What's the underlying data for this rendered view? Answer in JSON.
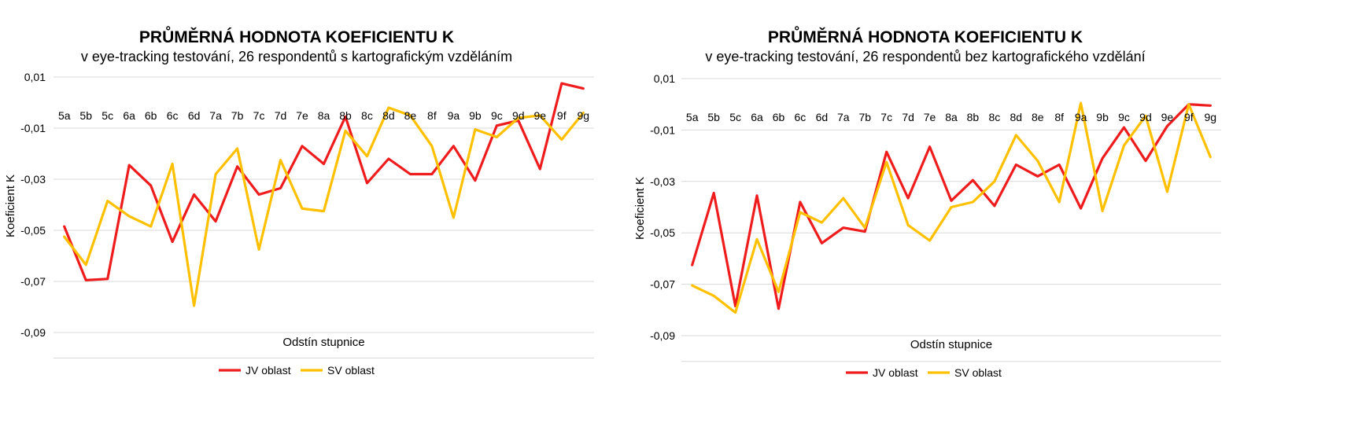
{
  "chart_data": [
    {
      "type": "line",
      "title": "PRŮMĚRNÁ HODNOTA KOEFICIENTU K",
      "subtitle": "v eye-tracking testování, 26 respondentů s kartografickým vzděláním",
      "xlabel": "Odstín stupnice",
      "ylabel": "Koeficient K",
      "ylim": [
        -0.1,
        0.01
      ],
      "yticks": [
        "0,01",
        "-0,01",
        "-0,03",
        "-0,05",
        "-0,07",
        "-0,09"
      ],
      "categories": [
        "5a",
        "5b",
        "5c",
        "6a",
        "6b",
        "6c",
        "6d",
        "7a",
        "7b",
        "7c",
        "7d",
        "7e",
        "8a",
        "8b",
        "8c",
        "8d",
        "8e",
        "8f",
        "9a",
        "9b",
        "9c",
        "9d",
        "9e",
        "9f",
        "9g"
      ],
      "series": [
        {
          "name": "JV oblast",
          "color": "#ee1c1c",
          "values": [
            -0.0485,
            -0.0695,
            -0.069,
            -0.0245,
            -0.0325,
            -0.0545,
            -0.036,
            -0.0465,
            -0.025,
            -0.036,
            -0.0335,
            -0.017,
            -0.024,
            -0.0055,
            -0.0315,
            -0.022,
            -0.028,
            -0.028,
            -0.017,
            -0.0305,
            -0.009,
            -0.007,
            -0.026,
            0.0075,
            0.0055
          ]
        },
        {
          "name": "SV oblast",
          "color": "#ffc000",
          "values": [
            -0.0525,
            -0.0635,
            -0.0385,
            -0.0445,
            -0.0485,
            -0.024,
            -0.0795,
            -0.028,
            -0.018,
            -0.0575,
            -0.0225,
            -0.0415,
            -0.0425,
            -0.011,
            -0.021,
            -0.002,
            -0.005,
            -0.017,
            -0.045,
            -0.0105,
            -0.0135,
            -0.006,
            -0.005,
            -0.0145,
            -0.004
          ]
        }
      ]
    },
    {
      "type": "line",
      "title": "PRŮMĚRNÁ HODNOTA KOEFICIENTU K",
      "subtitle": "v eye-tracking testování, 26 respondentů bez kartografického vzdělání",
      "xlabel": "Odstín stupnice",
      "ylabel": "Koeficient K",
      "ylim": [
        -0.1,
        0.01
      ],
      "yticks": [
        "0,01",
        "-0,01",
        "-0,03",
        "-0,05",
        "-0,07",
        "-0,09"
      ],
      "categories": [
        "5a",
        "5b",
        "5c",
        "6a",
        "6b",
        "6c",
        "6d",
        "7a",
        "7b",
        "7c",
        "7d",
        "7e",
        "8a",
        "8b",
        "8c",
        "8d",
        "8e",
        "8f",
        "9a",
        "9b",
        "9c",
        "9d",
        "9e",
        "9f",
        "9g"
      ],
      "series": [
        {
          "name": "JV oblast",
          "color": "#ee1c1c",
          "values": [
            -0.0625,
            -0.0345,
            -0.0785,
            -0.0355,
            -0.0795,
            -0.038,
            -0.054,
            -0.048,
            -0.0495,
            -0.0185,
            -0.0365,
            -0.0165,
            -0.0375,
            -0.0295,
            -0.0395,
            -0.0235,
            -0.028,
            -0.0235,
            -0.0405,
            -0.021,
            -0.009,
            -0.022,
            -0.0085,
            0.0,
            -0.0005
          ]
        },
        {
          "name": "SV oblast",
          "color": "#ffc000",
          "values": [
            -0.0705,
            -0.0745,
            -0.081,
            -0.0525,
            -0.073,
            -0.042,
            -0.046,
            -0.0365,
            -0.048,
            -0.0225,
            -0.047,
            -0.053,
            -0.04,
            -0.038,
            -0.03,
            -0.012,
            -0.022,
            -0.038,
            0.0005,
            -0.0415,
            -0.016,
            -0.0045,
            -0.034,
            0.0,
            -0.0205
          ]
        }
      ]
    }
  ]
}
